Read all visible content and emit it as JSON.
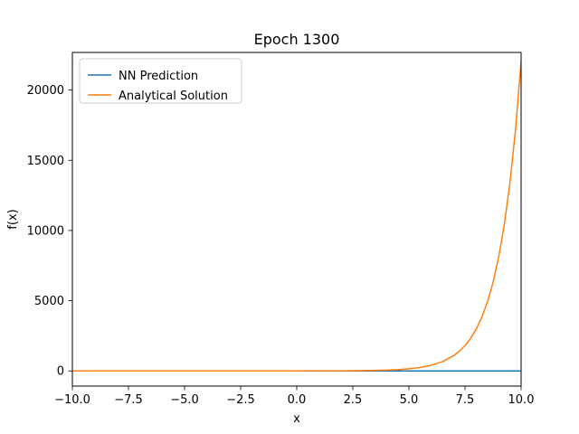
{
  "chart_data": {
    "type": "line",
    "title": "Epoch 1300",
    "xlabel": "x",
    "ylabel": "f(x)",
    "xlim": [
      -10.0,
      10.0
    ],
    "ylim": [
      -1080,
      22680
    ],
    "xticks": [
      -10.0,
      -7.5,
      -5.0,
      -2.5,
      0.0,
      2.5,
      5.0,
      7.5,
      10.0
    ],
    "xtick_labels": [
      "−10.0",
      "−7.5",
      "−5.0",
      "−2.5",
      "0.0",
      "2.5",
      "5.0",
      "7.5",
      "10.0"
    ],
    "yticks": [
      0,
      5000,
      10000,
      15000,
      20000
    ],
    "ytick_labels": [
      "0",
      "5000",
      "10000",
      "15000",
      "20000"
    ],
    "grid": false,
    "legend_position": "top-left",
    "series": [
      {
        "name": "NN Prediction",
        "color": "#1f77b4",
        "x": [
          -10.0,
          0.0,
          10.0
        ],
        "y": [
          0,
          0,
          0
        ]
      },
      {
        "name": "Analytical Solution",
        "color": "#ff7f0e",
        "x": [
          -10.0,
          -8.0,
          -6.0,
          -4.0,
          -2.0,
          0.0,
          1.0,
          2.0,
          3.0,
          4.0,
          4.5,
          5.0,
          5.5,
          6.0,
          6.5,
          7.0,
          7.25,
          7.5,
          7.75,
          8.0,
          8.25,
          8.5,
          8.75,
          9.0,
          9.25,
          9.5,
          9.75,
          10.0
        ],
        "y": [
          0,
          0,
          0,
          0,
          0,
          1,
          3,
          7,
          20,
          54,
          90,
          148,
          244,
          403,
          664,
          1096,
          1407,
          1808,
          2321,
          2981,
          3828,
          4915,
          6311,
          8103,
          10405,
          13360,
          17154,
          22026
        ]
      }
    ]
  }
}
